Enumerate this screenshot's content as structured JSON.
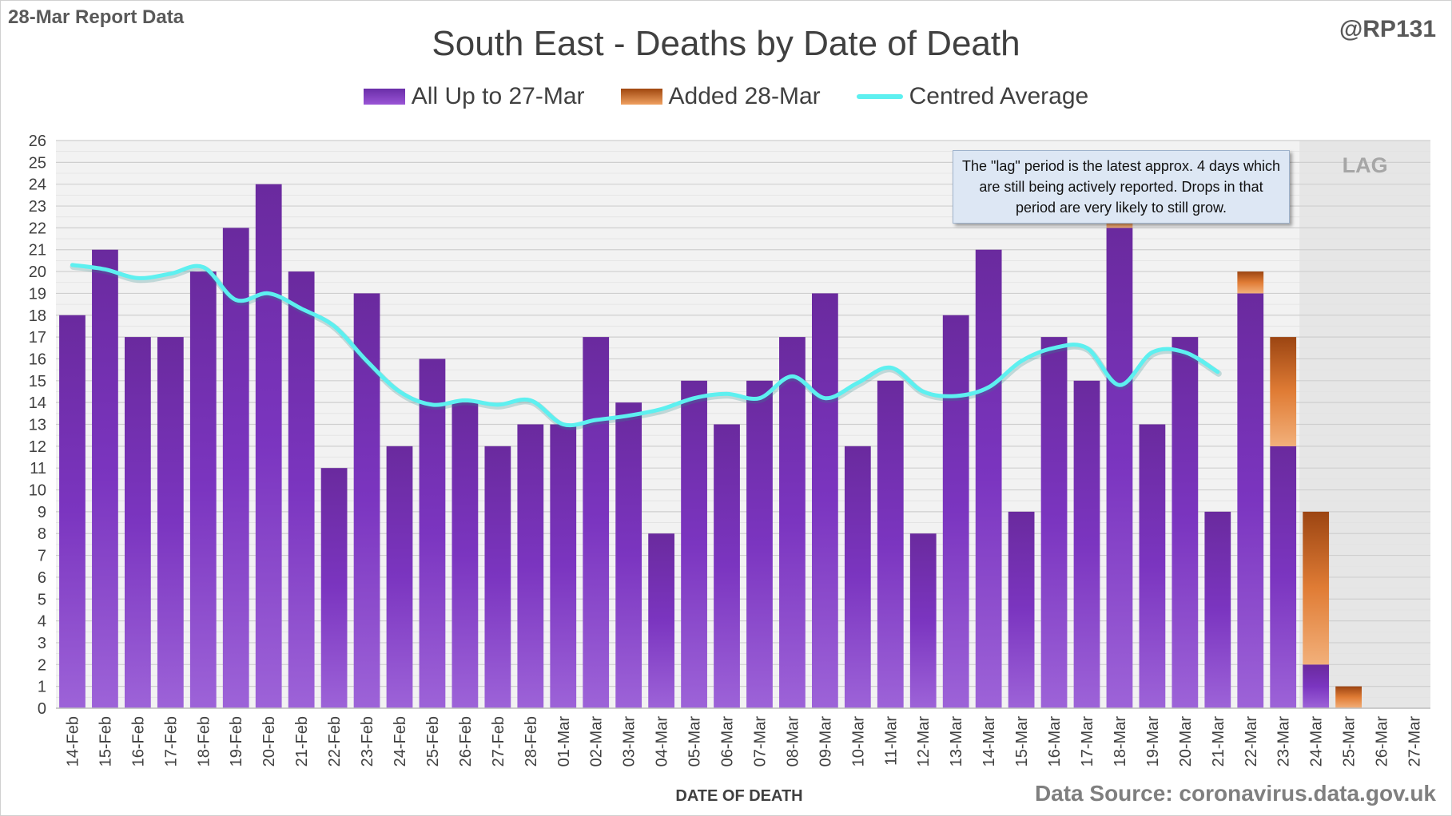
{
  "header": {
    "report_label": "28-Mar Report Data",
    "handle": "@RP131",
    "title": "South East - Deaths by Date of Death"
  },
  "legend": {
    "item1": "All Up to 27-Mar",
    "item2": "Added 28-Mar",
    "item3": "Centred Average"
  },
  "annotation": {
    "note": "The \"lag\" period is the latest approx. 4 days which are still being actively reported. Drops in that period are very likely to still grow.",
    "lag_label": "LAG"
  },
  "footer": {
    "source": "Data Source: coronavirus.data.gov.uk"
  },
  "colors": {
    "bar_purple": "#7b35c0",
    "bar_orange": "#d9782f",
    "average_line": "#5df0f0",
    "lag_shade": "#e6e6e6"
  },
  "chart_data": {
    "type": "bar",
    "title": "South East - Deaths by Date of Death",
    "xlabel": "DATE OF DEATH",
    "ylabel": "",
    "ylim": [
      0,
      26
    ],
    "yticks": [
      0,
      1,
      2,
      3,
      4,
      5,
      6,
      7,
      8,
      9,
      10,
      11,
      12,
      13,
      14,
      15,
      16,
      17,
      18,
      19,
      20,
      21,
      22,
      23,
      24,
      25,
      26
    ],
    "grid": true,
    "legend_position": "top",
    "stacked": true,
    "lag_region": [
      "24-Mar",
      "27-Mar"
    ],
    "categories": [
      "14-Feb",
      "15-Feb",
      "16-Feb",
      "17-Feb",
      "18-Feb",
      "19-Feb",
      "20-Feb",
      "21-Feb",
      "22-Feb",
      "23-Feb",
      "24-Feb",
      "25-Feb",
      "26-Feb",
      "27-Feb",
      "28-Feb",
      "01-Mar",
      "02-Mar",
      "03-Mar",
      "04-Mar",
      "05-Mar",
      "06-Mar",
      "07-Mar",
      "08-Mar",
      "09-Mar",
      "10-Mar",
      "11-Mar",
      "12-Mar",
      "13-Mar",
      "14-Mar",
      "15-Mar",
      "16-Mar",
      "17-Mar",
      "18-Mar",
      "19-Mar",
      "20-Mar",
      "21-Mar",
      "22-Mar",
      "23-Mar",
      "24-Mar",
      "25-Mar",
      "26-Mar",
      "27-Mar"
    ],
    "series": [
      {
        "name": "All Up to 27-Mar",
        "kind": "bar",
        "values": [
          18,
          21,
          17,
          17,
          20,
          22,
          24,
          20,
          11,
          19,
          12,
          16,
          14,
          12,
          13,
          13,
          17,
          14,
          8,
          15,
          13,
          15,
          17,
          19,
          12,
          15,
          8,
          18,
          21,
          9,
          17,
          15,
          22,
          13,
          17,
          9,
          19,
          12,
          2,
          0,
          0,
          0
        ]
      },
      {
        "name": "Added 28-Mar",
        "kind": "bar",
        "values": [
          0,
          0,
          0,
          0,
          0,
          0,
          0,
          0,
          0,
          0,
          0,
          0,
          0,
          0,
          0,
          0,
          0,
          0,
          0,
          0,
          0,
          0,
          0,
          0,
          0,
          0,
          0,
          0,
          0,
          0,
          0,
          0,
          1,
          0,
          0,
          0,
          1,
          5,
          7,
          1,
          0,
          0
        ]
      },
      {
        "name": "Centred Average",
        "kind": "line",
        "values": [
          20.3,
          20.1,
          19.7,
          19.9,
          20.2,
          18.7,
          19.0,
          18.3,
          17.5,
          15.9,
          14.5,
          13.9,
          14.1,
          13.9,
          14.1,
          13.0,
          13.2,
          13.4,
          13.7,
          14.2,
          14.4,
          14.2,
          15.2,
          14.2,
          14.9,
          15.6,
          14.5,
          14.3,
          14.7,
          15.9,
          16.5,
          16.5,
          14.8,
          16.3,
          16.3,
          15.4,
          null,
          null,
          null,
          null,
          null,
          null
        ]
      }
    ]
  }
}
